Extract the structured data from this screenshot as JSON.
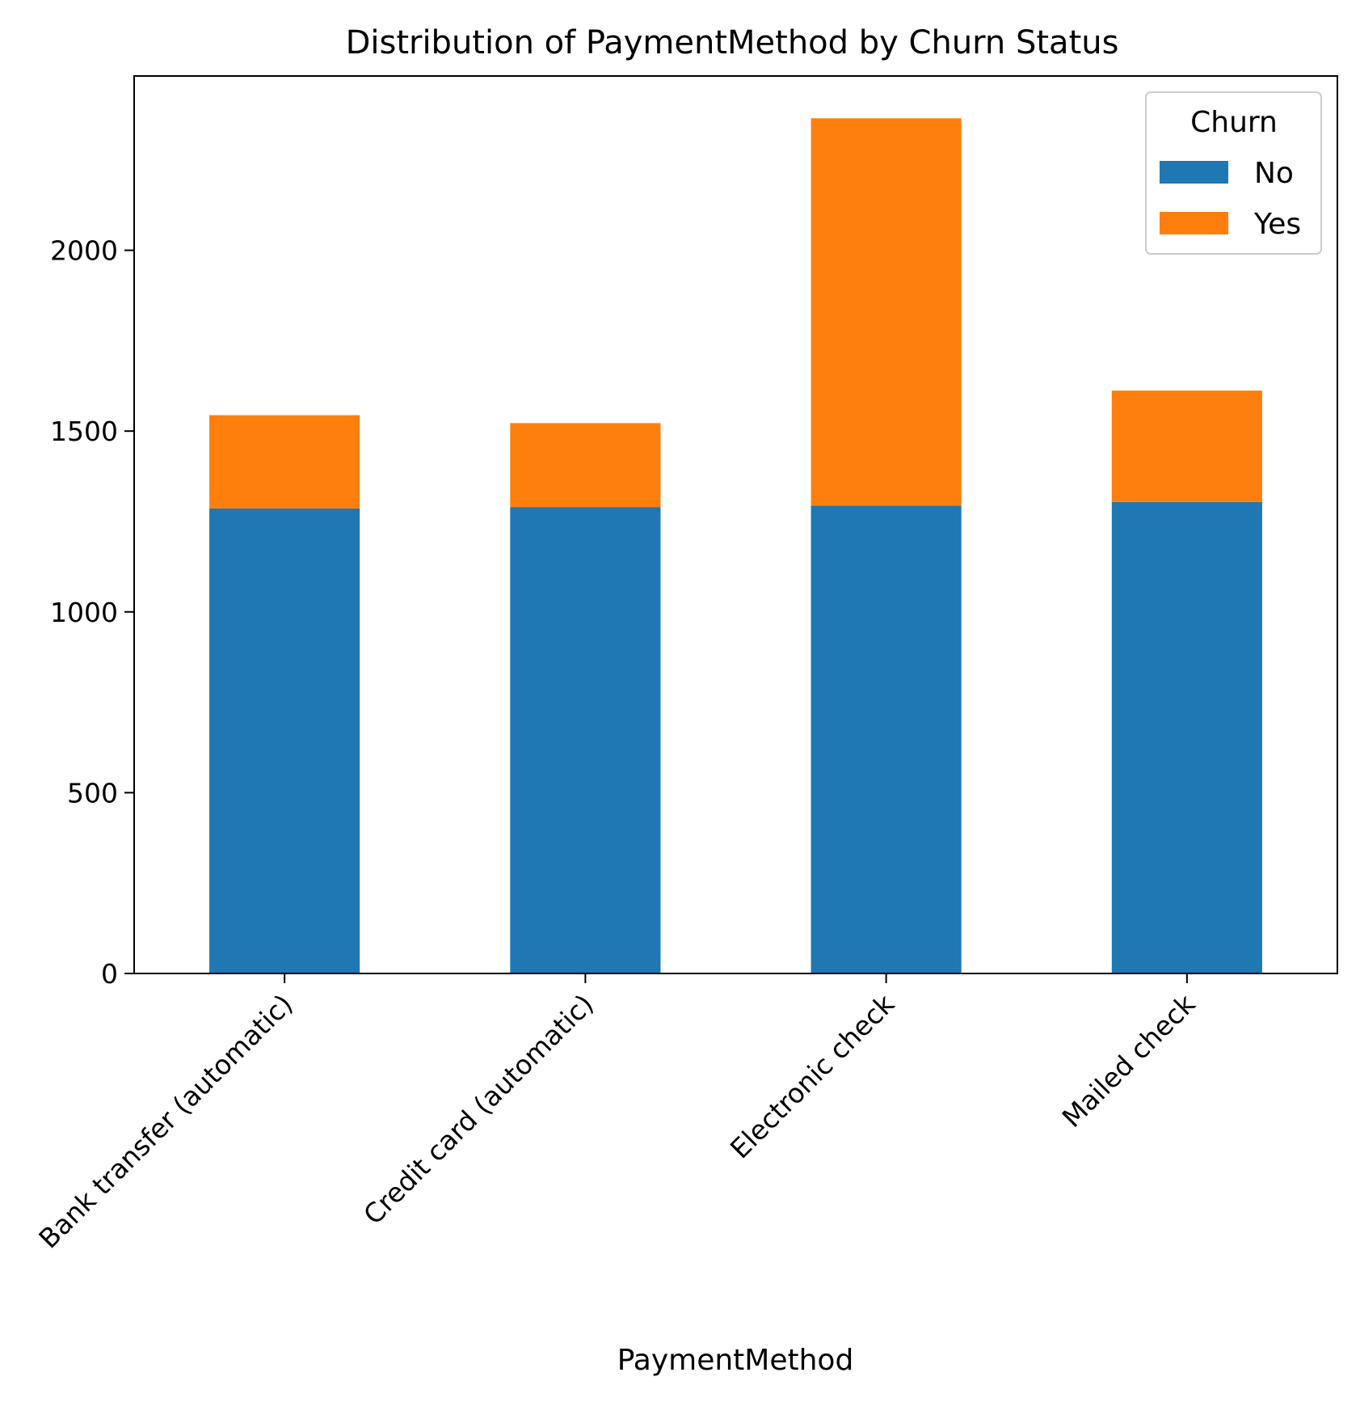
{
  "chart_data": {
    "type": "bar",
    "stacked": true,
    "title": "Distribution of PaymentMethod by Churn Status",
    "xlabel": "PaymentMethod",
    "ylabel": "",
    "categories": [
      "Bank transfer (automatic)",
      "Credit card (automatic)",
      "Electronic check",
      "Mailed check"
    ],
    "series": [
      {
        "name": "No",
        "color": "#1f77b4",
        "values": [
          1286,
          1290,
          1294,
          1304
        ]
      },
      {
        "name": "Yes",
        "color": "#ff7f0e",
        "values": [
          258,
          232,
          1071,
          308
        ]
      }
    ],
    "y_ticks": [
      0,
      500,
      1000,
      1500,
      2000
    ],
    "y_tick_labels": [
      "0",
      "500",
      "1000",
      "1500",
      "2000"
    ],
    "ylim": [
      0,
      2482
    ],
    "grid": false,
    "legend": {
      "title": "Churn",
      "placement": "top-right"
    }
  }
}
